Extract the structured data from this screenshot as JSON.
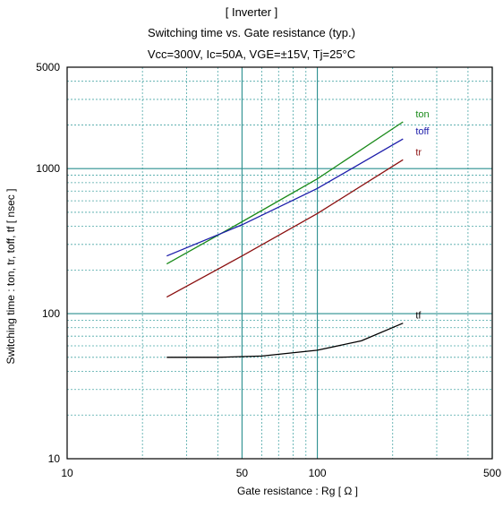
{
  "chart_data": {
    "type": "line",
    "title_lines": [
      "[ Inverter ]",
      "Switching time  vs.  Gate resistance  (typ.)",
      "Vcc=300V, Ic=50A, VGE=±15V, Tj=25°C"
    ],
    "xlabel": "Gate resistance  :  Rg  [  Ω  ]",
    "ylabel": "Switching time  :  ton, tr, toff, tf  [ nsec ]",
    "x_scale": "log",
    "y_scale": "log",
    "xlim": [
      10,
      500
    ],
    "ylim": [
      10,
      5000
    ],
    "x_ticks": [
      10,
      50,
      100,
      500
    ],
    "y_ticks": [
      10,
      100,
      1000,
      5000
    ],
    "grid": true,
    "series": [
      {
        "name": "ton",
        "color": "#1a8a1a",
        "x": [
          25,
          50,
          100,
          220
        ],
        "y": [
          220,
          430,
          850,
          2100
        ]
      },
      {
        "name": "toff",
        "color": "#1c1caa",
        "x": [
          25,
          50,
          100,
          220
        ],
        "y": [
          250,
          410,
          730,
          1600
        ]
      },
      {
        "name": "tr",
        "color": "#8b1010",
        "x": [
          25,
          50,
          100,
          220
        ],
        "y": [
          130,
          250,
          490,
          1150
        ]
      },
      {
        "name": "tf",
        "color": "#000000",
        "x": [
          25,
          40,
          60,
          100,
          150,
          220
        ],
        "y": [
          50,
          50,
          51,
          56,
          65,
          86
        ]
      }
    ]
  }
}
